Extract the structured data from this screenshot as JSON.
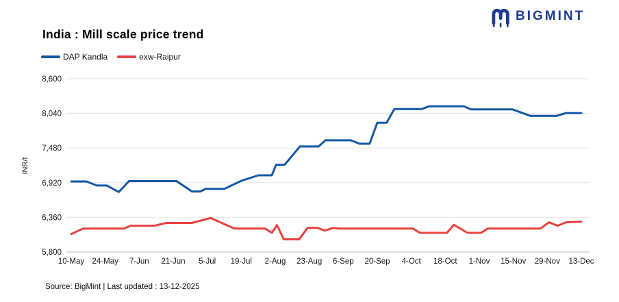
{
  "header": {
    "title": "India : Mill scale price trend"
  },
  "logo": {
    "text": "BIGMINT",
    "color": "#1d3c91",
    "icon": "bigmint-m-monogram"
  },
  "legend": {
    "items": [
      {
        "label": "DAP Kandla",
        "color": "#1557a5"
      },
      {
        "label": "exw-Raipur",
        "color": "#e84040"
      }
    ]
  },
  "footer": {
    "text": "Source: BigMint | Last updated : 13-12-2025"
  },
  "chart_data": {
    "type": "line",
    "title": "India : Mill scale price trend",
    "xlabel": "",
    "ylabel": "INR/t",
    "ylim": [
      5800,
      8600
    ],
    "y_ticks": [
      5800,
      6360,
      6920,
      7480,
      8040,
      8600
    ],
    "grid": "horizontal",
    "legend_position": "top-left",
    "x_unit": "week index, 0 = 10-May, 30 = 13-Dec (weekly series)",
    "x_ticks": [
      {
        "label": "10-May",
        "x": 0
      },
      {
        "label": "24-May",
        "x": 2
      },
      {
        "label": "7-Jun",
        "x": 4
      },
      {
        "label": "21-Jun",
        "x": 6
      },
      {
        "label": "5-Jul",
        "x": 8
      },
      {
        "label": "19-Jul",
        "x": 10
      },
      {
        "label": "2-Aug",
        "x": 12
      },
      {
        "label": "23-Aug",
        "x": 14
      },
      {
        "label": "6-Sep",
        "x": 16
      },
      {
        "label": "20-Sep",
        "x": 18
      },
      {
        "label": "4-Oct",
        "x": 20
      },
      {
        "label": "18-Oct",
        "x": 22
      },
      {
        "label": "1-Nov",
        "x": 24
      },
      {
        "label": "15-Nov",
        "x": 26
      },
      {
        "label": "29-Nov",
        "x": 28
      },
      {
        "label": "13-Dec",
        "x": 30
      }
    ],
    "series": [
      {
        "name": "DAP Kandla",
        "color": "#1557a5",
        "points": [
          [
            0,
            6940
          ],
          [
            0.9,
            6940
          ],
          [
            1.5,
            6875
          ],
          [
            2.1,
            6875
          ],
          [
            2.8,
            6770
          ],
          [
            3.4,
            6945
          ],
          [
            6.2,
            6945
          ],
          [
            7.1,
            6778
          ],
          [
            7.6,
            6778
          ],
          [
            7.9,
            6820
          ],
          [
            9.0,
            6820
          ],
          [
            10.0,
            6950
          ],
          [
            11.0,
            7040
          ],
          [
            11.8,
            7040
          ],
          [
            12.05,
            7210
          ],
          [
            12.55,
            7210
          ],
          [
            13.45,
            7505
          ],
          [
            14.55,
            7505
          ],
          [
            14.95,
            7605
          ],
          [
            16.45,
            7605
          ],
          [
            16.95,
            7550
          ],
          [
            17.55,
            7550
          ],
          [
            18.0,
            7890
          ],
          [
            18.55,
            7890
          ],
          [
            19.0,
            8110
          ],
          [
            20.6,
            8110
          ],
          [
            21.05,
            8155
          ],
          [
            23.1,
            8155
          ],
          [
            23.5,
            8105
          ],
          [
            25.95,
            8105
          ],
          [
            27.0,
            8000
          ],
          [
            28.55,
            8000
          ],
          [
            29.1,
            8045
          ],
          [
            30,
            8045
          ]
        ]
      },
      {
        "name": "exw-Raipur",
        "color": "#e84040",
        "points": [
          [
            0,
            6090
          ],
          [
            0.7,
            6180
          ],
          [
            3.1,
            6180
          ],
          [
            3.5,
            6225
          ],
          [
            4.9,
            6225
          ],
          [
            5.6,
            6270
          ],
          [
            7.1,
            6270
          ],
          [
            8.2,
            6350
          ],
          [
            9.0,
            6250
          ],
          [
            9.6,
            6180
          ],
          [
            11.4,
            6180
          ],
          [
            11.8,
            6110
          ],
          [
            12.1,
            6235
          ],
          [
            12.5,
            6005
          ],
          [
            13.4,
            6005
          ],
          [
            13.9,
            6190
          ],
          [
            14.5,
            6190
          ],
          [
            14.9,
            6145
          ],
          [
            15.4,
            6190
          ],
          [
            15.7,
            6180
          ],
          [
            20.1,
            6180
          ],
          [
            20.5,
            6110
          ],
          [
            22.1,
            6110
          ],
          [
            22.5,
            6240
          ],
          [
            23.3,
            6110
          ],
          [
            24.1,
            6110
          ],
          [
            24.5,
            6180
          ],
          [
            27.6,
            6180
          ],
          [
            28.1,
            6280
          ],
          [
            28.6,
            6225
          ],
          [
            29.1,
            6280
          ],
          [
            30,
            6290
          ]
        ]
      }
    ]
  }
}
